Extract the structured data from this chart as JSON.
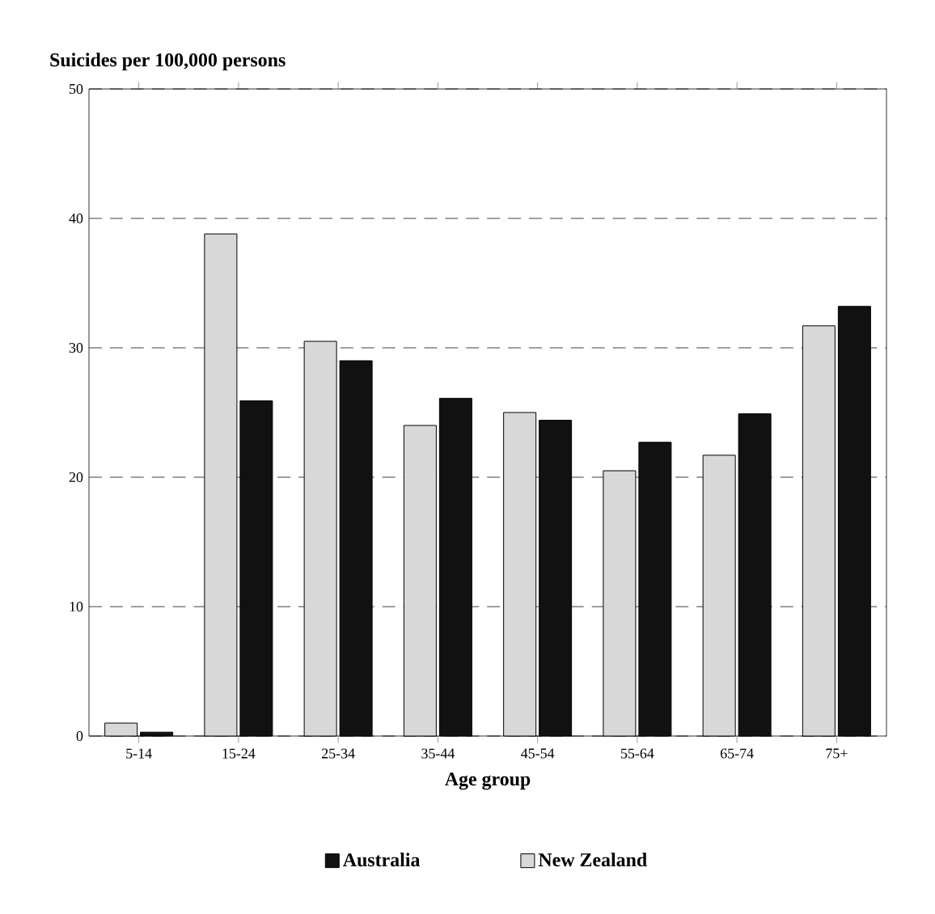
{
  "chart_data": {
    "type": "bar",
    "ylabel": "Suicides per 100,000 persons",
    "xlabel": "Age group",
    "categories": [
      "5-14",
      "15-24",
      "25-34",
      "35-44",
      "45-54",
      "55-64",
      "65-74",
      "75+"
    ],
    "series": [
      {
        "name": "New Zealand",
        "color": "#d8d8d8",
        "values": [
          1.0,
          38.8,
          30.5,
          24.0,
          25.0,
          20.5,
          21.7,
          31.7
        ]
      },
      {
        "name": "Australia",
        "color": "#111111",
        "values": [
          0.3,
          25.9,
          29.0,
          26.1,
          24.4,
          22.7,
          24.9,
          33.2
        ]
      }
    ],
    "ylim": [
      0,
      50
    ],
    "yticks": [
      0,
      10,
      20,
      30,
      40,
      50
    ],
    "grid": "y",
    "legend": "bottom"
  }
}
